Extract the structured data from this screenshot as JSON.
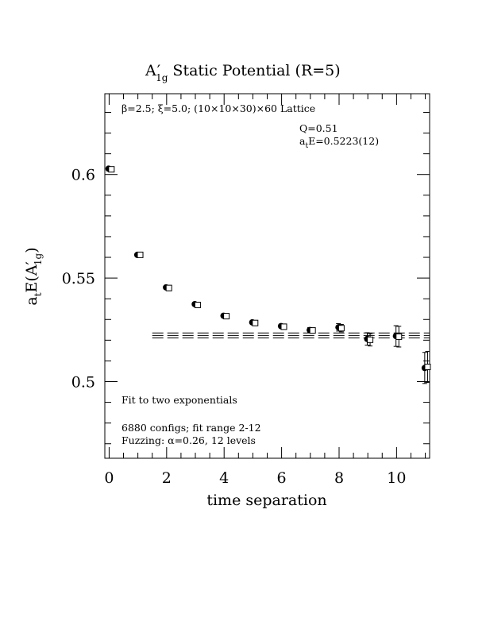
{
  "chart_data": {
    "type": "scatter",
    "title": "A′1g Static Potential (R=5)",
    "title_main": "A",
    "title_prime": "′",
    "title_sub": "1g",
    "title_rest": " Static Potential (R=5)",
    "xlabel": "time separation",
    "ylabel": "atE(A′1g)",
    "ylabel_a": "a",
    "ylabel_t": "t",
    "ylabel_E": "E(A",
    "ylabel_prime": "′",
    "ylabel_sub": "1g",
    "ylabel_close": ")",
    "xlim": [
      -0.15,
      11.15
    ],
    "ylim": [
      0.463,
      0.639
    ],
    "xticks": [
      0,
      2,
      4,
      6,
      8,
      10
    ],
    "xtick_labels": [
      "0",
      "2",
      "4",
      "6",
      "8",
      "10"
    ],
    "yticks": [
      0.5,
      0.55,
      0.6
    ],
    "ytick_labels": [
      "0.5",
      "0.55",
      "0.6"
    ],
    "grid": false,
    "lattice_text": "β=2.5; ξ=5.0; (10×10×30)×60 Lattice",
    "q_text": "Q=0.51",
    "energy_text_a": "a",
    "energy_text_t": "t",
    "energy_text_rest": "E=0.5223(12)",
    "notes": [
      "Fit to two exponentials",
      "6880 configs; fit range 2-12",
      "Fuzzing: α=0.26, 12 levels"
    ],
    "fit": {
      "value": 0.5223,
      "error": 0.0012,
      "x_range": [
        1.5,
        11.15
      ]
    },
    "series": [
      {
        "marker": "filled-circle",
        "x": [
          0,
          1,
          2,
          3,
          4,
          5,
          6,
          7,
          8,
          9,
          10,
          11
        ],
        "y": [
          0.6028,
          0.5612,
          0.5455,
          0.5374,
          0.5318,
          0.5286,
          0.5268,
          0.5249,
          0.5262,
          0.5206,
          0.522,
          0.5066
        ],
        "err": [
          0.0004,
          0.0005,
          0.0006,
          0.0007,
          0.0008,
          0.0009,
          0.001,
          0.0012,
          0.0018,
          0.003,
          0.005,
          0.0075
        ]
      },
      {
        "marker": "open-square",
        "x": [
          0,
          1,
          2,
          3,
          4,
          5,
          6,
          7,
          8,
          9,
          10,
          11
        ],
        "y": [
          0.6025,
          0.5612,
          0.5452,
          0.537,
          0.5316,
          0.5283,
          0.5265,
          0.5247,
          0.5258,
          0.5202,
          0.5217,
          0.5071
        ],
        "err": [
          0.0004,
          0.0005,
          0.0006,
          0.0007,
          0.0008,
          0.0009,
          0.001,
          0.0012,
          0.0018,
          0.003,
          0.005,
          0.0075
        ]
      }
    ]
  }
}
